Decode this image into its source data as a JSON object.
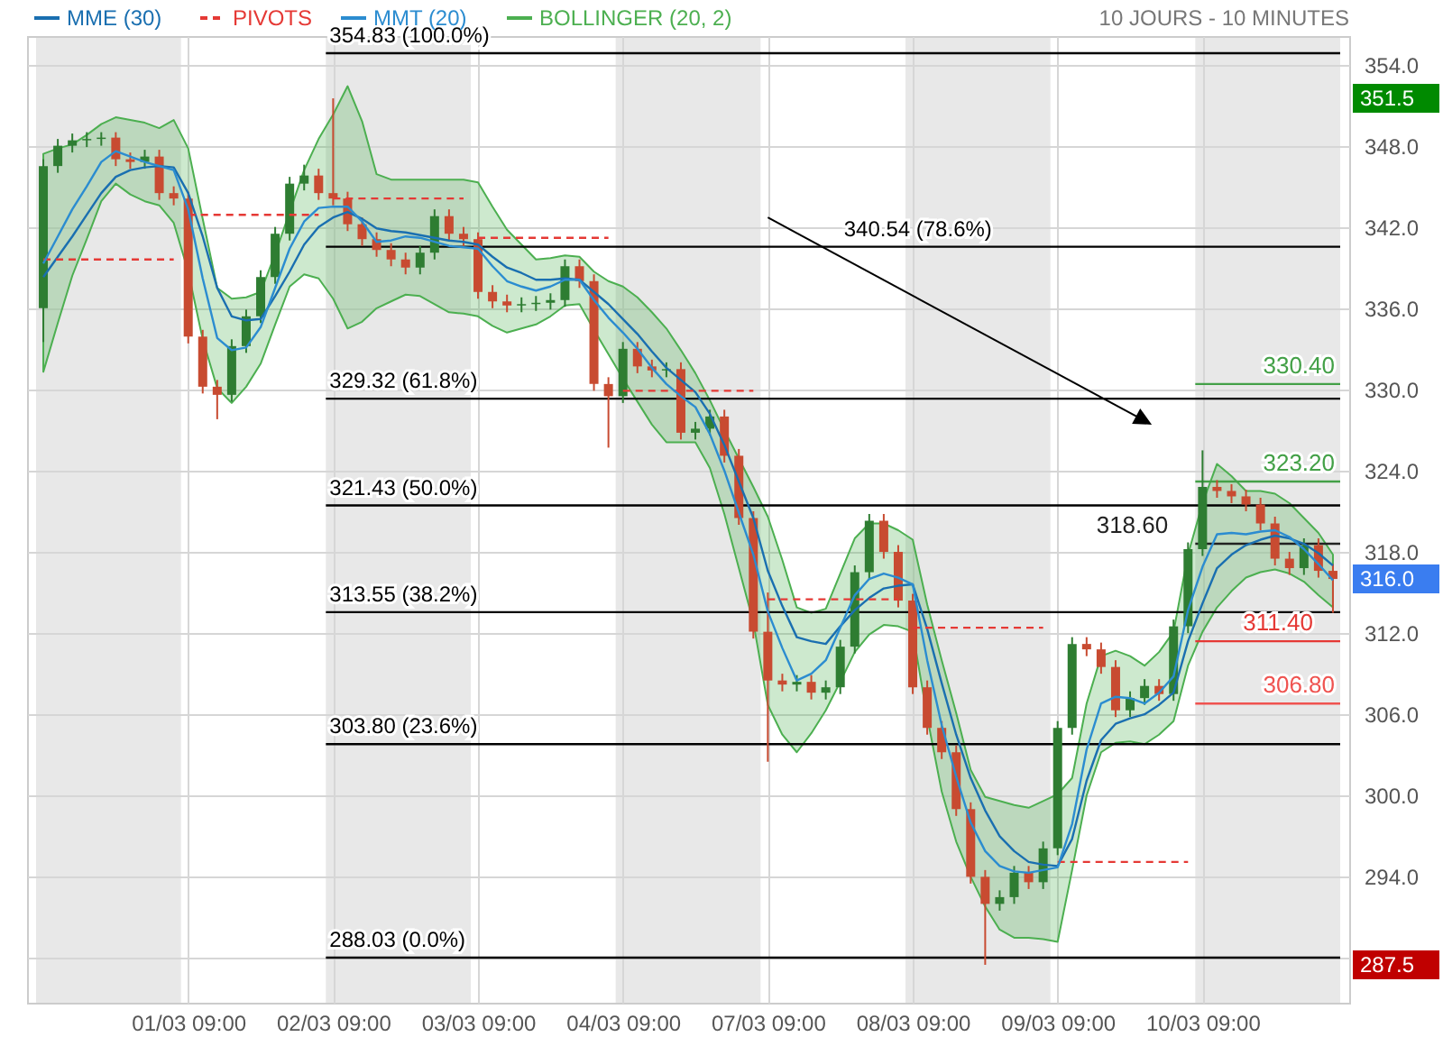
{
  "chart_data": {
    "type": "candlestick",
    "subtitle": "10 JOURS - 10 MINUTES",
    "categories": [
      null,
      null,
      null,
      null,
      null,
      null,
      null,
      null,
      null,
      null,
      "01/03 09:00",
      null,
      null,
      null,
      null,
      null,
      null,
      null,
      null,
      null,
      "02/03 09:00",
      null,
      null,
      null,
      null,
      null,
      null,
      null,
      null,
      null,
      "03/03 09:00",
      null,
      null,
      null,
      null,
      null,
      null,
      null,
      null,
      null,
      "04/03 09:00",
      null,
      null,
      null,
      null,
      null,
      null,
      null,
      null,
      null,
      "07/03 09:00",
      null,
      null,
      null,
      null,
      null,
      null,
      null,
      null,
      null,
      "08/03 09:00",
      null,
      null,
      null,
      null,
      null,
      null,
      null,
      null,
      null,
      "09/03 09:00",
      null,
      null,
      null,
      null,
      null,
      null,
      null,
      null,
      null,
      "10/03 09:00",
      null,
      null,
      null,
      null,
      null,
      null,
      null,
      null,
      null
    ],
    "ylim": [
      284.7,
      356.1
    ],
    "yticks": [
      {
        "value": 288,
        "label": null
      },
      {
        "value": 294,
        "label": "294.0"
      },
      {
        "value": 300,
        "label": "300.0"
      },
      {
        "value": 306,
        "label": "306.0"
      },
      {
        "value": 312,
        "label": "312.0"
      },
      {
        "value": 318,
        "label": "318.0"
      },
      {
        "value": 324,
        "label": "324.0"
      },
      {
        "value": 330,
        "label": "330.0"
      },
      {
        "value": 336,
        "label": "336.0"
      },
      {
        "value": 342,
        "label": "342.0"
      },
      {
        "value": 348,
        "label": "348.0"
      },
      {
        "value": 354,
        "label": "354.0"
      }
    ],
    "grid": true,
    "legend": "top left",
    "ohlc": [
      [
        336.0,
        347.0,
        333.5,
        346.5
      ],
      [
        346.5,
        348.5,
        346.0,
        348.0
      ],
      [
        348.0,
        348.9,
        347.5,
        348.4
      ],
      [
        348.4,
        349.0,
        347.9,
        348.5
      ],
      [
        348.5,
        349.0,
        348.0,
        348.6
      ],
      [
        348.6,
        349.0,
        346.5,
        347.0
      ],
      [
        347.0,
        347.5,
        346.3,
        346.8
      ],
      [
        346.8,
        347.7,
        346.3,
        347.2
      ],
      [
        347.2,
        347.7,
        344.0,
        344.5
      ],
      [
        344.5,
        345.0,
        343.6,
        344.1
      ],
      [
        344.1,
        344.6,
        333.4,
        333.9
      ],
      [
        333.9,
        334.4,
        329.7,
        330.2
      ],
      [
        330.2,
        330.7,
        327.8,
        329.6
      ],
      [
        329.6,
        333.7,
        329.1,
        333.2
      ],
      [
        333.2,
        335.9,
        332.7,
        335.4
      ],
      [
        335.4,
        338.8,
        334.9,
        338.3
      ],
      [
        338.3,
        342.0,
        337.8,
        341.5
      ],
      [
        341.5,
        345.7,
        341.0,
        345.2
      ],
      [
        345.2,
        346.6,
        344.7,
        345.8
      ],
      [
        345.8,
        346.3,
        344.0,
        344.5
      ],
      [
        344.5,
        351.5,
        343.6,
        344.1
      ],
      [
        344.1,
        344.6,
        341.7,
        342.2
      ],
      [
        342.2,
        342.7,
        340.6,
        341.1
      ],
      [
        341.1,
        341.6,
        339.8,
        340.3
      ],
      [
        340.3,
        340.8,
        339.1,
        339.6
      ],
      [
        339.6,
        340.1,
        338.5,
        339.0
      ],
      [
        339.0,
        340.6,
        338.5,
        340.1
      ],
      [
        340.1,
        343.3,
        339.6,
        342.8
      ],
      [
        342.8,
        343.3,
        341.0,
        341.5
      ],
      [
        341.5,
        342.0,
        340.6,
        341.1
      ],
      [
        341.1,
        341.6,
        336.7,
        337.2
      ],
      [
        337.2,
        337.7,
        336.0,
        336.5
      ],
      [
        336.5,
        337.0,
        335.7,
        336.2
      ],
      [
        336.2,
        336.8,
        335.7,
        336.3
      ],
      [
        336.3,
        336.9,
        335.8,
        336.4
      ],
      [
        336.4,
        337.1,
        335.9,
        336.6
      ],
      [
        336.6,
        339.6,
        336.1,
        339.1
      ],
      [
        339.1,
        339.6,
        337.5,
        338.0
      ],
      [
        338.0,
        338.5,
        329.9,
        330.4
      ],
      [
        330.4,
        330.9,
        325.7,
        329.5
      ],
      [
        329.5,
        333.5,
        329.0,
        333.0
      ],
      [
        333.0,
        333.5,
        331.2,
        331.7
      ],
      [
        331.7,
        332.2,
        330.9,
        331.4
      ],
      [
        331.4,
        332.0,
        330.9,
        331.5
      ],
      [
        331.5,
        332.0,
        326.3,
        326.8
      ],
      [
        326.8,
        327.6,
        326.3,
        327.1
      ],
      [
        327.1,
        328.5,
        326.6,
        328.0
      ],
      [
        328.0,
        328.5,
        324.6,
        325.1
      ],
      [
        325.1,
        325.6,
        320.0,
        320.5
      ],
      [
        320.5,
        321.0,
        311.6,
        312.1
      ],
      [
        312.1,
        315.0,
        302.5,
        308.5
      ],
      [
        308.5,
        309.0,
        307.7,
        308.2
      ],
      [
        308.2,
        308.9,
        307.7,
        308.4
      ],
      [
        308.4,
        308.9,
        307.1,
        307.6
      ],
      [
        307.6,
        308.5,
        307.1,
        308.0
      ],
      [
        308.0,
        311.5,
        307.5,
        311.0
      ],
      [
        311.0,
        317.0,
        310.5,
        316.5
      ],
      [
        316.5,
        320.8,
        316.0,
        320.3
      ],
      [
        320.3,
        320.8,
        317.5,
        318.0
      ],
      [
        318.0,
        318.5,
        313.9,
        314.4
      ],
      [
        314.4,
        314.9,
        307.5,
        308.0
      ],
      [
        308.0,
        308.5,
        304.5,
        305.0
      ],
      [
        305.0,
        305.5,
        302.7,
        303.2
      ],
      [
        303.2,
        303.7,
        298.5,
        299.0
      ],
      [
        299.0,
        299.5,
        293.5,
        294.0
      ],
      [
        294.0,
        294.5,
        287.5,
        292.0
      ],
      [
        292.0,
        293.0,
        291.5,
        292.5
      ],
      [
        292.5,
        294.8,
        292.0,
        294.3
      ],
      [
        294.3,
        294.8,
        293.1,
        293.6
      ],
      [
        293.6,
        296.6,
        293.1,
        296.1
      ],
      [
        296.1,
        305.5,
        295.6,
        305.0
      ],
      [
        305.0,
        311.7,
        304.5,
        311.2
      ],
      [
        311.2,
        311.7,
        310.3,
        310.8
      ],
      [
        310.8,
        311.3,
        309.0,
        309.5
      ],
      [
        309.5,
        310.0,
        305.8,
        306.3
      ],
      [
        306.3,
        307.7,
        305.8,
        307.2
      ],
      [
        307.2,
        308.6,
        306.7,
        308.1
      ],
      [
        308.1,
        308.6,
        307.0,
        307.5
      ],
      [
        307.5,
        313.0,
        307.0,
        312.5
      ],
      [
        312.5,
        318.7,
        312.0,
        318.2
      ],
      [
        318.2,
        325.5,
        317.7,
        322.8
      ],
      [
        322.8,
        323.3,
        322.0,
        322.5
      ],
      [
        322.5,
        323.0,
        321.6,
        322.1
      ],
      [
        322.1,
        322.6,
        321.0,
        321.5
      ],
      [
        321.5,
        322.0,
        319.6,
        320.1
      ],
      [
        320.1,
        320.6,
        317.0,
        317.5
      ],
      [
        317.5,
        318.0,
        316.3,
        316.8
      ],
      [
        316.8,
        319.0,
        316.3,
        318.5
      ],
      [
        318.5,
        319.0,
        316.1,
        316.6
      ],
      [
        316.6,
        317.1,
        313.5,
        316.0
      ]
    ],
    "series": [
      {
        "name": "MME (30)",
        "type": "line",
        "color": "#1a6fb0",
        "values": [
          338.3,
          339.8,
          341.3,
          342.9,
          344.5,
          345.7,
          346.2,
          346.4,
          346.5,
          346.4,
          344.5,
          341.3,
          337.5,
          335.4,
          335.1,
          335.2,
          336.9,
          338.7,
          340.7,
          342.0,
          342.7,
          343.1,
          342.6,
          341.9,
          341.7,
          341.6,
          341.4,
          341.2,
          341.0,
          340.9,
          340.7,
          339.8,
          339.0,
          338.6,
          338.1,
          338.1,
          338.2,
          338.1,
          337.2,
          336.3,
          335.2,
          334.1,
          332.8,
          331.6,
          330.7,
          329.8,
          328.2,
          325.9,
          323.2,
          320.5,
          316.6,
          314.0,
          311.7,
          311.4,
          311.2,
          312.5,
          313.7,
          314.6,
          315.3,
          315.5,
          315.6,
          312.3,
          308.3,
          304.5,
          301.3,
          298.9,
          297.0,
          295.9,
          295.1,
          294.9,
          294.8,
          296.8,
          301.1,
          304.1,
          305.3,
          305.7,
          306.0,
          306.7,
          307.6,
          311.4,
          314.2,
          316.8,
          317.8,
          318.5,
          318.9,
          319.2,
          319.0,
          318.6,
          317.9,
          317.0
        ]
      },
      {
        "name": "PIVOTS",
        "type": "step",
        "color": "#e53935",
        "line_style": "dashed",
        "values": [
          339.6,
          339.6,
          339.6,
          339.6,
          339.6,
          339.6,
          339.6,
          339.6,
          339.6,
          339.6,
          342.9,
          342.9,
          342.9,
          342.9,
          342.9,
          342.9,
          342.9,
          342.9,
          342.9,
          342.9,
          344.1,
          344.1,
          344.1,
          344.1,
          344.1,
          344.1,
          344.1,
          344.1,
          344.1,
          344.1,
          341.2,
          341.2,
          341.2,
          341.2,
          341.2,
          341.2,
          341.2,
          341.2,
          341.2,
          341.2,
          329.9,
          329.9,
          329.9,
          329.9,
          329.9,
          329.9,
          329.9,
          329.9,
          329.9,
          329.9,
          314.5,
          314.5,
          314.5,
          314.5,
          314.5,
          314.5,
          314.5,
          314.5,
          314.5,
          314.5,
          312.4,
          312.4,
          312.4,
          312.4,
          312.4,
          312.4,
          312.4,
          312.4,
          312.4,
          312.4,
          295.1,
          295.1,
          295.1,
          295.1,
          295.1,
          295.1,
          295.1,
          295.1,
          295.1,
          295.1,
          null,
          null,
          null,
          null,
          null,
          null,
          null,
          null,
          null,
          null
        ]
      },
      {
        "name": "MMT (20)",
        "type": "line",
        "color": "#2b8cd0",
        "values": [
          339.3,
          341.3,
          343.3,
          345.0,
          346.8,
          347.6,
          347.2,
          346.8,
          346.5,
          346.2,
          343.3,
          338.2,
          333.8,
          332.9,
          333.1,
          334.6,
          337.5,
          340.4,
          342.4,
          343.4,
          343.5,
          343.5,
          342.4,
          340.9,
          341.0,
          341.3,
          341.2,
          340.9,
          340.6,
          340.5,
          340.4,
          339.1,
          338.0,
          337.6,
          337.3,
          337.6,
          338.1,
          338.1,
          336.6,
          335.3,
          334.2,
          333.0,
          331.6,
          330.4,
          329.5,
          328.7,
          326.7,
          324.0,
          320.9,
          317.8,
          313.6,
          310.9,
          308.5,
          309.0,
          310.0,
          312.4,
          314.8,
          316.0,
          316.4,
          316.1,
          315.6,
          310.0,
          305.2,
          301.4,
          298.0,
          295.9,
          294.8,
          294.4,
          294.3,
          294.5,
          294.7,
          297.9,
          303.4,
          306.8,
          307.3,
          307.2,
          306.8,
          307.6,
          308.8,
          313.7,
          316.9,
          319.3,
          319.4,
          319.3,
          319.5,
          319.6,
          319.1,
          318.2,
          317.1,
          315.9
        ],
        "upper": [
          347.4,
          347.8,
          348.1,
          348.8,
          349.6,
          350.1,
          349.9,
          349.7,
          349.3,
          349.9,
          347.8,
          342.6,
          337.5,
          336.7,
          336.8,
          337.2,
          340.0,
          343.1,
          346.2,
          348.5,
          350.3,
          352.4,
          349.8,
          345.9,
          345.5,
          345.5,
          345.5,
          345.5,
          345.5,
          345.5,
          345.3,
          343.5,
          341.8,
          340.7,
          339.6,
          339.7,
          339.9,
          339.8,
          338.7,
          338.0,
          337.6,
          336.8,
          335.7,
          334.5,
          332.9,
          331.2,
          329.2,
          327.0,
          324.9,
          322.8,
          320.6,
          317.4,
          313.9,
          313.5,
          313.8,
          316.4,
          319.0,
          320.1,
          320.1,
          319.6,
          318.9,
          314.1,
          310.0,
          306.1,
          301.9,
          299.9,
          299.6,
          299.3,
          299.1,
          299.6,
          300.1,
          301.3,
          306.8,
          310.3,
          310.7,
          310.3,
          309.6,
          310.6,
          312.1,
          317.8,
          321.6,
          324.5,
          323.6,
          322.5,
          322.5,
          322.3,
          321.6,
          320.5,
          319.4,
          317.8
        ],
        "lower": [
          331.3,
          334.9,
          338.4,
          341.1,
          343.9,
          345.2,
          344.4,
          343.9,
          343.6,
          342.3,
          338.7,
          333.7,
          330.1,
          329.0,
          330.2,
          331.9,
          334.8,
          337.6,
          338.5,
          338.2,
          336.7,
          334.5,
          335.0,
          336.0,
          336.5,
          337.0,
          336.9,
          336.3,
          335.7,
          335.6,
          335.4,
          334.7,
          334.2,
          334.5,
          334.8,
          335.4,
          336.2,
          336.3,
          334.4,
          332.6,
          330.8,
          329.1,
          327.4,
          326.1,
          326.1,
          326.1,
          324.2,
          320.8,
          316.8,
          312.8,
          306.7,
          304.5,
          303.2,
          304.6,
          306.3,
          308.4,
          310.6,
          311.9,
          312.6,
          312.5,
          312.1,
          305.8,
          300.3,
          296.6,
          294.0,
          291.8,
          290.1,
          289.5,
          289.5,
          289.4,
          289.2,
          294.5,
          300.0,
          303.2,
          303.9,
          304.0,
          303.8,
          304.5,
          305.5,
          309.6,
          312.1,
          313.9,
          315.1,
          316.1,
          316.5,
          316.7,
          316.4,
          315.8,
          314.8,
          313.9
        ]
      }
    ],
    "ref_lines": [
      {
        "axis": "y",
        "value": 354.83,
        "label": "354.83 (100.0%)"
      },
      {
        "axis": "y",
        "value": 340.54,
        "label": "340.54 (78.6%)"
      },
      {
        "axis": "y",
        "value": 329.32,
        "label": "329.32 (61.8%)"
      },
      {
        "axis": "y",
        "value": 321.43,
        "label": "321.43 (50.0%)"
      },
      {
        "axis": "y",
        "value": 313.55,
        "label": "313.55 (38.2%)"
      },
      {
        "axis": "y",
        "value": 303.8,
        "label": "303.80 (23.6%)"
      },
      {
        "axis": "y",
        "value": 288.03,
        "label": "288.03 (0.0%)"
      },
      {
        "axis": "y",
        "value": 330.4,
        "label": "330.40",
        "color": "#43a047"
      },
      {
        "axis": "y",
        "value": 323.2,
        "label": "323.20",
        "color": "#43a047"
      },
      {
        "axis": "y",
        "value": 318.6,
        "label": "318.60",
        "color": "#222222"
      },
      {
        "axis": "y",
        "value": 311.4,
        "label": "311.40",
        "color": "#e53935"
      },
      {
        "axis": "y",
        "value": 306.8,
        "label": "306.80",
        "color": "#ef5350"
      }
    ],
    "annotations": [
      "351.5",
      "316.0",
      "287.5",
      "BOLLINGER (20, 2)"
    ]
  }
}
